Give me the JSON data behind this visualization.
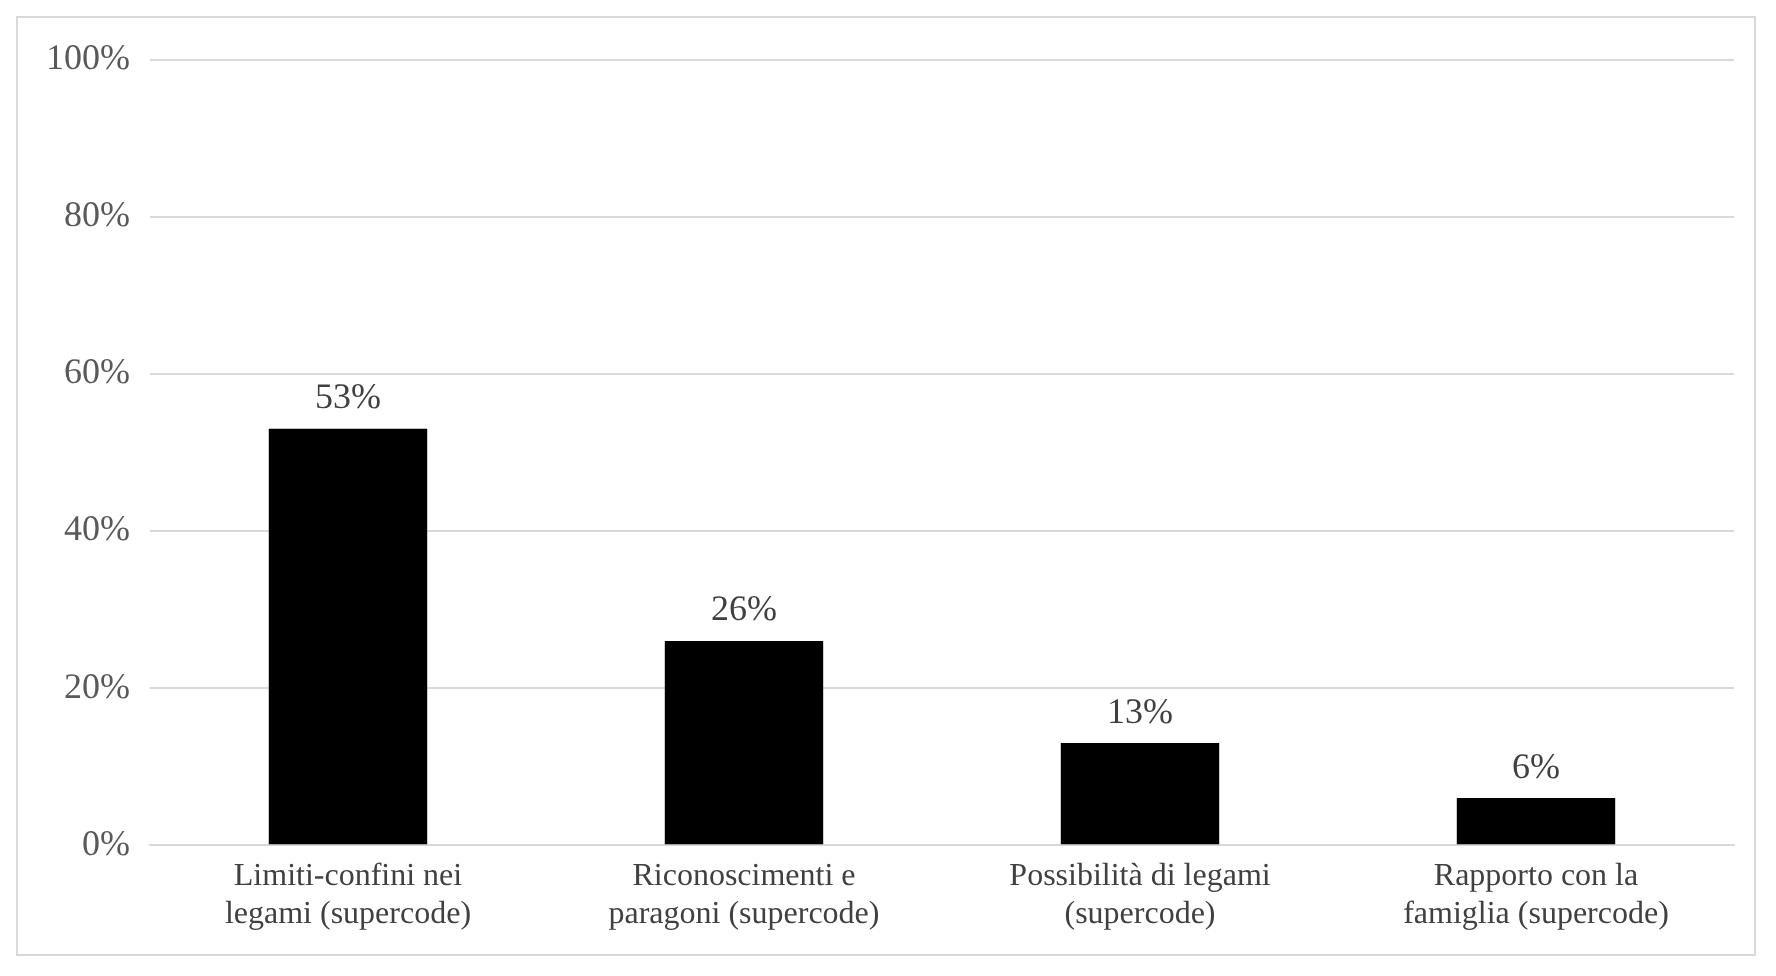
{
  "chart_data": {
    "type": "bar",
    "categories": [
      "Limiti-confini nei legami (supercode)",
      "Riconoscimenti e paragoni (supercode)",
      "Possibilità di legami (supercode)",
      "Rapporto con la famiglia (supercode)"
    ],
    "values": [
      53,
      26,
      13,
      6
    ],
    "color": "#000000",
    "ylim": [
      0,
      100
    ],
    "yticks": [
      {
        "value": 0,
        "label": "0%"
      },
      {
        "value": 20,
        "label": "20%"
      },
      {
        "value": 40,
        "label": "40%"
      },
      {
        "value": 60,
        "label": "60%"
      },
      {
        "value": 80,
        "label": "80%"
      },
      {
        "value": 100,
        "label": "100%"
      }
    ],
    "grid": "y",
    "value_labels": [
      "53%",
      "26%",
      "13%",
      "6%"
    ],
    "legend": false
  }
}
